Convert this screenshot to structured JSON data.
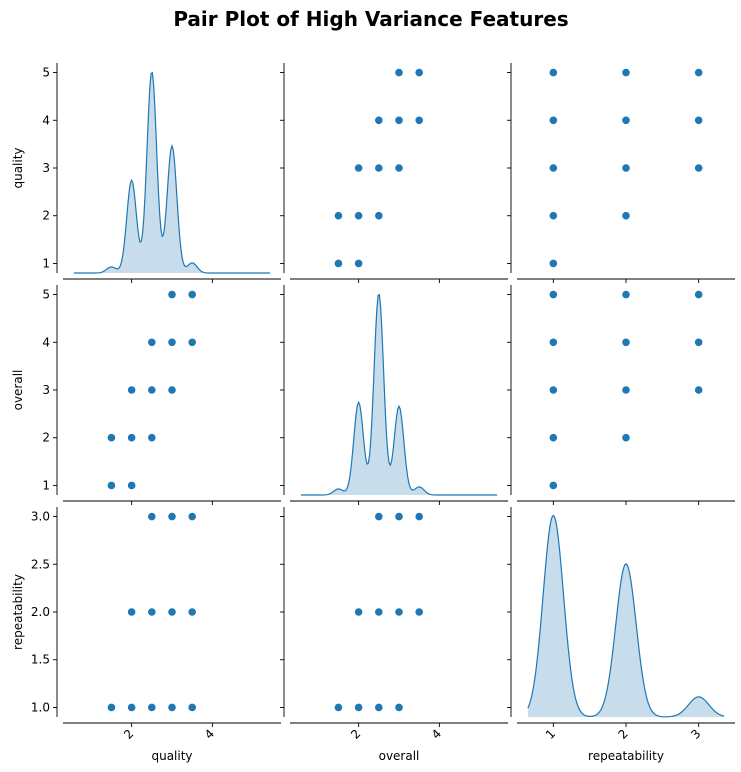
{
  "chart_data": {
    "type": "scatter",
    "subtype": "pair-plot",
    "title": "Pair Plot of High Variance Features",
    "variables": [
      "quality",
      "overall",
      "repeatability"
    ],
    "diagonal": "kde",
    "color": "#1f77b4",
    "axes": {
      "quality": {
        "range": [
          0.8,
          5.2
        ],
        "ticks": [
          1,
          2,
          3,
          4,
          5
        ],
        "bottom_ticks": [
          2,
          4
        ],
        "bottom_range": [
          0.3,
          5.7
        ],
        "tick_labels_rotated": true
      },
      "overall": {
        "range": [
          0.8,
          5.2
        ],
        "ticks": [
          1,
          2,
          3,
          4,
          5
        ],
        "bottom_ticks": [
          2,
          4
        ],
        "bottom_range": [
          0.3,
          5.7
        ],
        "tick_labels_rotated": true
      },
      "repeatability": {
        "range": [
          0.9,
          3.1
        ],
        "ticks": [
          1.0,
          1.5,
          2.0,
          2.5,
          3.0
        ],
        "bottom_ticks": [
          1,
          2,
          3
        ],
        "bottom_range": [
          0.5,
          3.5
        ],
        "tick_labels_rotated": true
      }
    },
    "pairs": [
      {
        "x": "overall",
        "y": "quality",
        "points": [
          [
            1.5,
            1
          ],
          [
            1.5,
            2
          ],
          [
            2,
            1
          ],
          [
            2,
            2
          ],
          [
            2,
            3
          ],
          [
            2.5,
            2
          ],
          [
            2.5,
            3
          ],
          [
            2.5,
            4
          ],
          [
            3,
            3
          ],
          [
            3,
            4
          ],
          [
            3,
            5
          ],
          [
            3.5,
            4
          ],
          [
            3.5,
            5
          ]
        ]
      },
      {
        "x": "repeatability",
        "y": "quality",
        "points": [
          [
            1,
            1
          ],
          [
            1,
            2
          ],
          [
            1,
            3
          ],
          [
            1,
            4
          ],
          [
            1,
            5
          ],
          [
            2,
            2
          ],
          [
            2,
            3
          ],
          [
            2,
            4
          ],
          [
            2,
            5
          ],
          [
            3,
            3
          ],
          [
            3,
            4
          ],
          [
            3,
            5
          ]
        ]
      },
      {
        "x": "quality",
        "y": "overall",
        "points": [
          [
            1.5,
            1
          ],
          [
            1.5,
            2
          ],
          [
            2,
            1
          ],
          [
            2,
            2
          ],
          [
            2,
            3
          ],
          [
            2.5,
            2
          ],
          [
            2.5,
            3
          ],
          [
            2.5,
            4
          ],
          [
            3,
            3
          ],
          [
            3,
            4
          ],
          [
            3,
            5
          ],
          [
            3.5,
            4
          ],
          [
            3.5,
            5
          ]
        ]
      },
      {
        "x": "repeatability",
        "y": "overall",
        "points": [
          [
            1,
            1
          ],
          [
            1,
            2
          ],
          [
            1,
            3
          ],
          [
            1,
            4
          ],
          [
            1,
            5
          ],
          [
            2,
            2
          ],
          [
            2,
            3
          ],
          [
            2,
            4
          ],
          [
            2,
            5
          ],
          [
            3,
            3
          ],
          [
            3,
            4
          ],
          [
            3,
            5
          ]
        ]
      },
      {
        "x": "quality",
        "y": "repeatability",
        "points": [
          [
            1.5,
            1
          ],
          [
            2,
            1
          ],
          [
            2,
            2
          ],
          [
            2.5,
            1
          ],
          [
            2.5,
            2
          ],
          [
            2.5,
            3
          ],
          [
            3,
            1
          ],
          [
            3,
            2
          ],
          [
            3,
            3
          ],
          [
            3.5,
            1
          ],
          [
            3.5,
            2
          ],
          [
            3.5,
            3
          ]
        ]
      },
      {
        "x": "overall",
        "y": "repeatability",
        "points": [
          [
            1.5,
            1
          ],
          [
            2,
            1
          ],
          [
            2,
            2
          ],
          [
            2.5,
            1
          ],
          [
            2.5,
            2
          ],
          [
            2.5,
            3
          ],
          [
            3,
            1
          ],
          [
            3,
            2
          ],
          [
            3,
            3
          ],
          [
            3.5,
            2
          ],
          [
            3.5,
            3
          ]
        ]
      }
    ],
    "kde_components": {
      "quality": [
        {
          "mu": 1.5,
          "sigma": 0.12,
          "h": 0.03
        },
        {
          "mu": 2,
          "sigma": 0.12,
          "h": 0.46
        },
        {
          "mu": 2.5,
          "sigma": 0.12,
          "h": 1.0
        },
        {
          "mu": 3,
          "sigma": 0.12,
          "h": 0.63
        },
        {
          "mu": 3.5,
          "sigma": 0.12,
          "h": 0.05
        }
      ],
      "overall": [
        {
          "mu": 1.5,
          "sigma": 0.12,
          "h": 0.03
        },
        {
          "mu": 2,
          "sigma": 0.12,
          "h": 0.46
        },
        {
          "mu": 2.5,
          "sigma": 0.12,
          "h": 1.0
        },
        {
          "mu": 3,
          "sigma": 0.12,
          "h": 0.44
        },
        {
          "mu": 3.5,
          "sigma": 0.12,
          "h": 0.04
        }
      ],
      "repeatability": [
        {
          "mu": 1,
          "sigma": 0.14,
          "h": 1.0
        },
        {
          "mu": 2,
          "sigma": 0.14,
          "h": 0.76
        },
        {
          "mu": 3,
          "sigma": 0.14,
          "h": 0.1
        }
      ]
    }
  }
}
